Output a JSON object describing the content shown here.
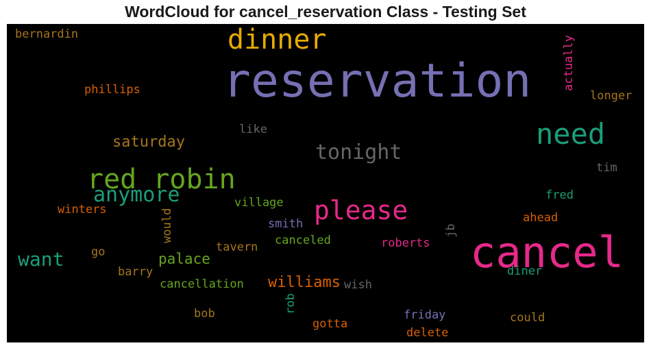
{
  "title": "WordCloud for cancel_reservation Class - Testing Set",
  "words": [
    {
      "text": "reservation",
      "color": "#7570b3"
    },
    {
      "text": "cancel",
      "color": "#e7298a"
    },
    {
      "text": "dinner",
      "color": "#e6ab02"
    },
    {
      "text": "need",
      "color": "#1b9e77"
    },
    {
      "text": "red robin",
      "color": "#66a61e"
    },
    {
      "text": "please",
      "color": "#e7298a"
    },
    {
      "text": "tonight",
      "color": "#666666"
    },
    {
      "text": "anymore",
      "color": "#1b9e77"
    },
    {
      "text": "want",
      "color": "#1b9e77"
    },
    {
      "text": "williams",
      "color": "#d95f02"
    },
    {
      "text": "saturday",
      "color": "#a6761d"
    },
    {
      "text": "palace",
      "color": "#66a61e"
    },
    {
      "text": "bernardin",
      "color": "#a6761d"
    },
    {
      "text": "phillips",
      "color": "#d95f02"
    },
    {
      "text": "actually",
      "color": "#e7298a"
    },
    {
      "text": "longer",
      "color": "#a6761d"
    },
    {
      "text": "like",
      "color": "#666666"
    },
    {
      "text": "tim",
      "color": "#666666"
    },
    {
      "text": "fred",
      "color": "#1b9e77"
    },
    {
      "text": "village",
      "color": "#66a61e"
    },
    {
      "text": "winters",
      "color": "#d95f02"
    },
    {
      "text": "would",
      "color": "#a6761d"
    },
    {
      "text": "smith",
      "color": "#7570b3"
    },
    {
      "text": "jb",
      "color": "#666666"
    },
    {
      "text": "ahead",
      "color": "#d95f02"
    },
    {
      "text": "canceled",
      "color": "#66a61e"
    },
    {
      "text": "roberts",
      "color": "#e7298a"
    },
    {
      "text": "go",
      "color": "#a6761d"
    },
    {
      "text": "tavern",
      "color": "#a6761d"
    },
    {
      "text": "barry",
      "color": "#a6761d"
    },
    {
      "text": "cancellation",
      "color": "#66a61e"
    },
    {
      "text": "rob",
      "color": "#1b9e77"
    },
    {
      "text": "wish",
      "color": "#666666"
    },
    {
      "text": "diner",
      "color": "#1b9e77"
    },
    {
      "text": "bob",
      "color": "#a6761d"
    },
    {
      "text": "gotta",
      "color": "#d95f02"
    },
    {
      "text": "friday",
      "color": "#7570b3"
    },
    {
      "text": "could",
      "color": "#a6761d"
    },
    {
      "text": "delete",
      "color": "#d95f02"
    }
  ]
}
